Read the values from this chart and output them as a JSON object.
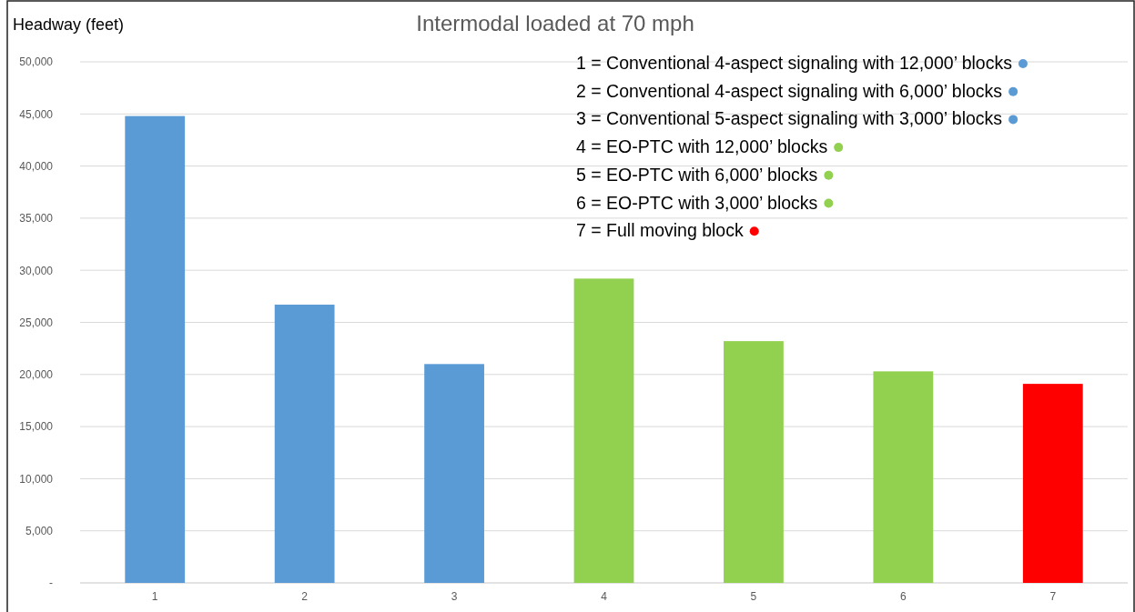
{
  "chart_data": {
    "type": "bar",
    "title": "Intermodal loaded at 70 mph",
    "ylabel": "Headway (feet)",
    "categories": [
      "1",
      "2",
      "3",
      "4",
      "5",
      "6",
      "7"
    ],
    "values": [
      44800,
      26700,
      21000,
      29200,
      23200,
      20300,
      19100
    ],
    "colors": [
      "#5b9bd5",
      "#5b9bd5",
      "#5b9bd5",
      "#92d050",
      "#92d050",
      "#92d050",
      "#ff0000"
    ],
    "ylim": [
      0,
      50000
    ],
    "yticks": [
      {
        "value": 0,
        "label": "-"
      },
      {
        "value": 5000,
        "label": "5,000"
      },
      {
        "value": 10000,
        "label": "10,000"
      },
      {
        "value": 15000,
        "label": "15,000"
      },
      {
        "value": 20000,
        "label": "20,000"
      },
      {
        "value": 25000,
        "label": "25,000"
      },
      {
        "value": 30000,
        "label": "30,000"
      },
      {
        "value": 35000,
        "label": "35,000"
      },
      {
        "value": 40000,
        "label": "40,000"
      },
      {
        "value": 45000,
        "label": "45,000"
      },
      {
        "value": 50000,
        "label": "50,000"
      }
    ],
    "grid": "y",
    "annotations": [
      "1 = Conventional 4-aspect signaling with 12,000’ blocks",
      "2 = Conventional 4-aspect signaling with 6,000’ blocks",
      "3 = Conventional 5-aspect signaling with 3,000’ blocks",
      "4 = EO-PTC with 12,000’ blocks",
      "5 = EO-PTC with 6,000’ blocks",
      "6 = EO-PTC with 3,000’ blocks",
      "7 = Full moving block"
    ]
  }
}
